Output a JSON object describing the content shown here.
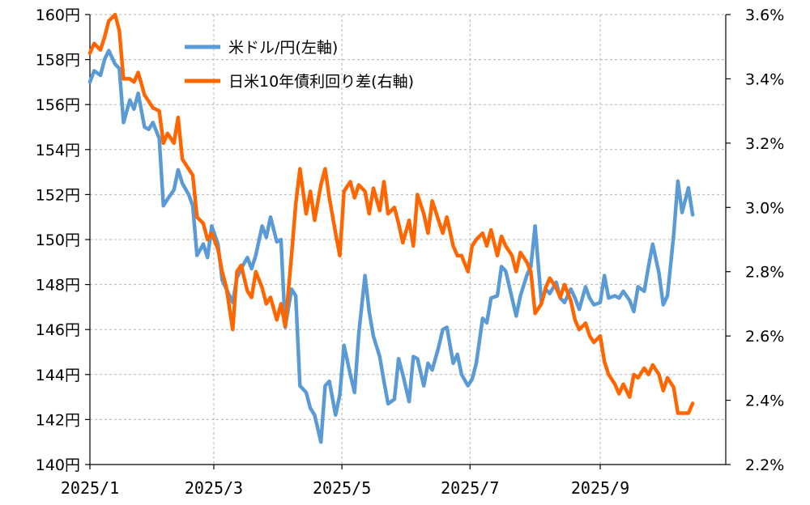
{
  "chart_data": {
    "type": "line",
    "title": "",
    "xlabel": "",
    "ylabel_left": "",
    "ylabel_right": "",
    "x_ticks": [
      "2025/1",
      "2025/3",
      "2025/5",
      "2025/7",
      "2025/9"
    ],
    "y_left": {
      "min": 140,
      "max": 160,
      "step": 2,
      "unit": "円"
    },
    "y_right": {
      "min": 2.2,
      "max": 3.6,
      "step": 0.2,
      "unit": "%"
    },
    "y_left_ticks": [
      "140円",
      "142円",
      "144円",
      "146円",
      "148円",
      "150円",
      "152円",
      "154円",
      "156円",
      "158円",
      "160円"
    ],
    "y_right_ticks": [
      "2.2%",
      "2.4%",
      "2.6%",
      "2.8%",
      "3.0%",
      "3.2%",
      "3.4%",
      "3.6%"
    ],
    "grid": true,
    "legend_position": "top-left",
    "series": [
      {
        "name": "米ドル/円(左軸)",
        "axis": "left",
        "color": "#5B9BD5",
        "points": [
          [
            "2025-01-01",
            157.0
          ],
          [
            "2025-01-03",
            157.5
          ],
          [
            "2025-01-06",
            157.3
          ],
          [
            "2025-01-08",
            158.0
          ],
          [
            "2025-01-10",
            158.4
          ],
          [
            "2025-01-13",
            157.8
          ],
          [
            "2025-01-15",
            157.6
          ],
          [
            "2025-01-17",
            155.2
          ],
          [
            "2025-01-20",
            156.2
          ],
          [
            "2025-01-22",
            155.8
          ],
          [
            "2025-01-24",
            156.5
          ],
          [
            "2025-01-27",
            155.0
          ],
          [
            "2025-01-29",
            154.9
          ],
          [
            "2025-01-31",
            155.2
          ],
          [
            "2025-02-03",
            154.5
          ],
          [
            "2025-02-05",
            151.5
          ],
          [
            "2025-02-07",
            151.8
          ],
          [
            "2025-02-10",
            152.2
          ],
          [
            "2025-02-12",
            153.1
          ],
          [
            "2025-02-14",
            152.5
          ],
          [
            "2025-02-17",
            152.0
          ],
          [
            "2025-02-19",
            151.5
          ],
          [
            "2025-02-21",
            149.3
          ],
          [
            "2025-02-24",
            149.8
          ],
          [
            "2025-02-26",
            149.2
          ],
          [
            "2025-02-28",
            150.6
          ],
          [
            "2025-03-03",
            149.8
          ],
          [
            "2025-03-05",
            148.2
          ],
          [
            "2025-03-07",
            147.8
          ],
          [
            "2025-03-10",
            147.2
          ],
          [
            "2025-03-12",
            148.3
          ],
          [
            "2025-03-14",
            148.7
          ],
          [
            "2025-03-17",
            149.2
          ],
          [
            "2025-03-19",
            148.7
          ],
          [
            "2025-03-21",
            149.3
          ],
          [
            "2025-03-24",
            150.6
          ],
          [
            "2025-03-26",
            150.1
          ],
          [
            "2025-03-28",
            151.0
          ],
          [
            "2025-03-31",
            149.9
          ],
          [
            "2025-04-02",
            150.0
          ],
          [
            "2025-04-04",
            146.1
          ],
          [
            "2025-04-07",
            147.8
          ],
          [
            "2025-04-09",
            147.5
          ],
          [
            "2025-04-11",
            143.5
          ],
          [
            "2025-04-14",
            143.2
          ],
          [
            "2025-04-16",
            142.5
          ],
          [
            "2025-04-18",
            142.2
          ],
          [
            "2025-04-21",
            141.0
          ],
          [
            "2025-04-23",
            143.5
          ],
          [
            "2025-04-25",
            143.7
          ],
          [
            "2025-04-28",
            142.2
          ],
          [
            "2025-04-30",
            143.1
          ],
          [
            "2025-05-02",
            145.3
          ],
          [
            "2025-05-05",
            144.0
          ],
          [
            "2025-05-07",
            143.2
          ],
          [
            "2025-05-09",
            145.8
          ],
          [
            "2025-05-12",
            148.4
          ],
          [
            "2025-05-14",
            146.8
          ],
          [
            "2025-05-16",
            145.7
          ],
          [
            "2025-05-19",
            144.8
          ],
          [
            "2025-05-21",
            143.7
          ],
          [
            "2025-05-23",
            142.7
          ],
          [
            "2025-05-26",
            142.9
          ],
          [
            "2025-05-28",
            144.7
          ],
          [
            "2025-05-30",
            144.0
          ],
          [
            "2025-06-02",
            142.8
          ],
          [
            "2025-06-04",
            144.8
          ],
          [
            "2025-06-06",
            144.7
          ],
          [
            "2025-06-09",
            143.5
          ],
          [
            "2025-06-11",
            144.5
          ],
          [
            "2025-06-13",
            144.2
          ],
          [
            "2025-06-16",
            145.2
          ],
          [
            "2025-06-18",
            146.0
          ],
          [
            "2025-06-20",
            146.1
          ],
          [
            "2025-06-23",
            144.5
          ],
          [
            "2025-06-25",
            144.9
          ],
          [
            "2025-06-27",
            144.0
          ],
          [
            "2025-06-30",
            143.5
          ],
          [
            "2025-07-02",
            143.8
          ],
          [
            "2025-07-04",
            144.5
          ],
          [
            "2025-07-07",
            146.5
          ],
          [
            "2025-07-09",
            146.3
          ],
          [
            "2025-07-11",
            147.4
          ],
          [
            "2025-07-14",
            147.5
          ],
          [
            "2025-07-16",
            148.8
          ],
          [
            "2025-07-18",
            148.6
          ],
          [
            "2025-07-21",
            147.4
          ],
          [
            "2025-07-23",
            146.6
          ],
          [
            "2025-07-25",
            147.5
          ],
          [
            "2025-07-28",
            148.4
          ],
          [
            "2025-07-30",
            148.8
          ],
          [
            "2025-08-01",
            150.6
          ],
          [
            "2025-08-04",
            147.2
          ],
          [
            "2025-08-06",
            147.8
          ],
          [
            "2025-08-08",
            147.6
          ],
          [
            "2025-08-11",
            148.1
          ],
          [
            "2025-08-13",
            147.4
          ],
          [
            "2025-08-15",
            147.2
          ],
          [
            "2025-08-18",
            147.8
          ],
          [
            "2025-08-20",
            147.4
          ],
          [
            "2025-08-22",
            146.9
          ],
          [
            "2025-08-25",
            147.9
          ],
          [
            "2025-08-27",
            147.4
          ],
          [
            "2025-08-29",
            147.1
          ],
          [
            "2025-09-01",
            147.2
          ],
          [
            "2025-09-03",
            148.4
          ],
          [
            "2025-09-05",
            147.4
          ],
          [
            "2025-09-08",
            147.5
          ],
          [
            "2025-09-10",
            147.4
          ],
          [
            "2025-09-12",
            147.7
          ],
          [
            "2025-09-15",
            147.3
          ],
          [
            "2025-09-17",
            146.8
          ],
          [
            "2025-09-19",
            147.9
          ],
          [
            "2025-09-22",
            147.7
          ],
          [
            "2025-09-24",
            148.8
          ],
          [
            "2025-09-26",
            149.8
          ],
          [
            "2025-09-29",
            148.5
          ],
          [
            "2025-10-01",
            147.1
          ],
          [
            "2025-10-03",
            147.5
          ],
          [
            "2025-10-06",
            150.2
          ],
          [
            "2025-10-08",
            152.6
          ],
          [
            "2025-10-10",
            151.2
          ],
          [
            "2025-10-13",
            152.3
          ],
          [
            "2025-10-15",
            151.1
          ]
        ]
      },
      {
        "name": "日米10年債利回り差(右軸)",
        "axis": "right",
        "color": "#FF6600",
        "points": [
          [
            "2025-01-01",
            3.48
          ],
          [
            "2025-01-03",
            3.51
          ],
          [
            "2025-01-06",
            3.49
          ],
          [
            "2025-01-08",
            3.53
          ],
          [
            "2025-01-10",
            3.58
          ],
          [
            "2025-01-13",
            3.6
          ],
          [
            "2025-01-15",
            3.55
          ],
          [
            "2025-01-17",
            3.4
          ],
          [
            "2025-01-20",
            3.4
          ],
          [
            "2025-01-22",
            3.39
          ],
          [
            "2025-01-24",
            3.42
          ],
          [
            "2025-01-27",
            3.35
          ],
          [
            "2025-01-29",
            3.33
          ],
          [
            "2025-01-31",
            3.31
          ],
          [
            "2025-02-03",
            3.3
          ],
          [
            "2025-02-05",
            3.2
          ],
          [
            "2025-02-07",
            3.23
          ],
          [
            "2025-02-10",
            3.2
          ],
          [
            "2025-02-12",
            3.28
          ],
          [
            "2025-02-14",
            3.15
          ],
          [
            "2025-02-17",
            3.12
          ],
          [
            "2025-02-19",
            3.1
          ],
          [
            "2025-02-21",
            2.97
          ],
          [
            "2025-02-24",
            2.95
          ],
          [
            "2025-02-26",
            2.9
          ],
          [
            "2025-02-28",
            2.92
          ],
          [
            "2025-03-03",
            2.87
          ],
          [
            "2025-03-05",
            2.8
          ],
          [
            "2025-03-07",
            2.75
          ],
          [
            "2025-03-10",
            2.62
          ],
          [
            "2025-03-12",
            2.8
          ],
          [
            "2025-03-14",
            2.82
          ],
          [
            "2025-03-17",
            2.74
          ],
          [
            "2025-03-19",
            2.72
          ],
          [
            "2025-03-21",
            2.8
          ],
          [
            "2025-03-24",
            2.75
          ],
          [
            "2025-03-26",
            2.7
          ],
          [
            "2025-03-28",
            2.72
          ],
          [
            "2025-03-31",
            2.65
          ],
          [
            "2025-04-02",
            2.7
          ],
          [
            "2025-04-04",
            2.63
          ],
          [
            "2025-04-07",
            2.85
          ],
          [
            "2025-04-09",
            3.01
          ],
          [
            "2025-04-11",
            3.12
          ],
          [
            "2025-04-14",
            2.98
          ],
          [
            "2025-04-16",
            3.05
          ],
          [
            "2025-04-18",
            2.96
          ],
          [
            "2025-04-21",
            3.07
          ],
          [
            "2025-04-23",
            3.12
          ],
          [
            "2025-04-25",
            3.03
          ],
          [
            "2025-04-28",
            2.92
          ],
          [
            "2025-04-30",
            2.85
          ],
          [
            "2025-05-02",
            3.05
          ],
          [
            "2025-05-05",
            3.08
          ],
          [
            "2025-05-07",
            3.03
          ],
          [
            "2025-05-09",
            3.07
          ],
          [
            "2025-05-12",
            3.05
          ],
          [
            "2025-05-14",
            2.98
          ],
          [
            "2025-05-16",
            3.06
          ],
          [
            "2025-05-19",
            2.99
          ],
          [
            "2025-05-21",
            3.08
          ],
          [
            "2025-05-23",
            2.98
          ],
          [
            "2025-05-26",
            3.0
          ],
          [
            "2025-05-28",
            2.95
          ],
          [
            "2025-05-30",
            2.89
          ],
          [
            "2025-06-02",
            2.96
          ],
          [
            "2025-06-04",
            2.88
          ],
          [
            "2025-06-06",
            3.04
          ],
          [
            "2025-06-09",
            2.98
          ],
          [
            "2025-06-11",
            2.92
          ],
          [
            "2025-06-13",
            3.02
          ],
          [
            "2025-06-16",
            2.96
          ],
          [
            "2025-06-18",
            2.92
          ],
          [
            "2025-06-20",
            2.97
          ],
          [
            "2025-06-23",
            2.88
          ],
          [
            "2025-06-25",
            2.85
          ],
          [
            "2025-06-27",
            2.85
          ],
          [
            "2025-06-30",
            2.8
          ],
          [
            "2025-07-02",
            2.88
          ],
          [
            "2025-07-04",
            2.9
          ],
          [
            "2025-07-07",
            2.92
          ],
          [
            "2025-07-09",
            2.88
          ],
          [
            "2025-07-11",
            2.93
          ],
          [
            "2025-07-14",
            2.85
          ],
          [
            "2025-07-16",
            2.91
          ],
          [
            "2025-07-18",
            2.88
          ],
          [
            "2025-07-21",
            2.85
          ],
          [
            "2025-07-23",
            2.8
          ],
          [
            "2025-07-25",
            2.86
          ],
          [
            "2025-07-28",
            2.83
          ],
          [
            "2025-07-30",
            2.8
          ],
          [
            "2025-08-01",
            2.67
          ],
          [
            "2025-08-04",
            2.7
          ],
          [
            "2025-08-06",
            2.75
          ],
          [
            "2025-08-08",
            2.78
          ],
          [
            "2025-08-11",
            2.75
          ],
          [
            "2025-08-13",
            2.72
          ],
          [
            "2025-08-15",
            2.76
          ],
          [
            "2025-08-18",
            2.71
          ],
          [
            "2025-08-20",
            2.65
          ],
          [
            "2025-08-22",
            2.62
          ],
          [
            "2025-08-25",
            2.64
          ],
          [
            "2025-08-27",
            2.6
          ],
          [
            "2025-08-29",
            2.58
          ],
          [
            "2025-09-01",
            2.6
          ],
          [
            "2025-09-03",
            2.52
          ],
          [
            "2025-09-05",
            2.48
          ],
          [
            "2025-09-08",
            2.45
          ],
          [
            "2025-09-10",
            2.42
          ],
          [
            "2025-09-12",
            2.45
          ],
          [
            "2025-09-15",
            2.41
          ],
          [
            "2025-09-17",
            2.48
          ],
          [
            "2025-09-19",
            2.47
          ],
          [
            "2025-09-22",
            2.5
          ],
          [
            "2025-09-24",
            2.48
          ],
          [
            "2025-09-26",
            2.51
          ],
          [
            "2025-09-29",
            2.48
          ],
          [
            "2025-10-01",
            2.43
          ],
          [
            "2025-10-03",
            2.47
          ],
          [
            "2025-10-06",
            2.44
          ],
          [
            "2025-10-08",
            2.36
          ],
          [
            "2025-10-10",
            2.36
          ],
          [
            "2025-10-13",
            2.36
          ],
          [
            "2025-10-15",
            2.39
          ]
        ]
      }
    ]
  }
}
